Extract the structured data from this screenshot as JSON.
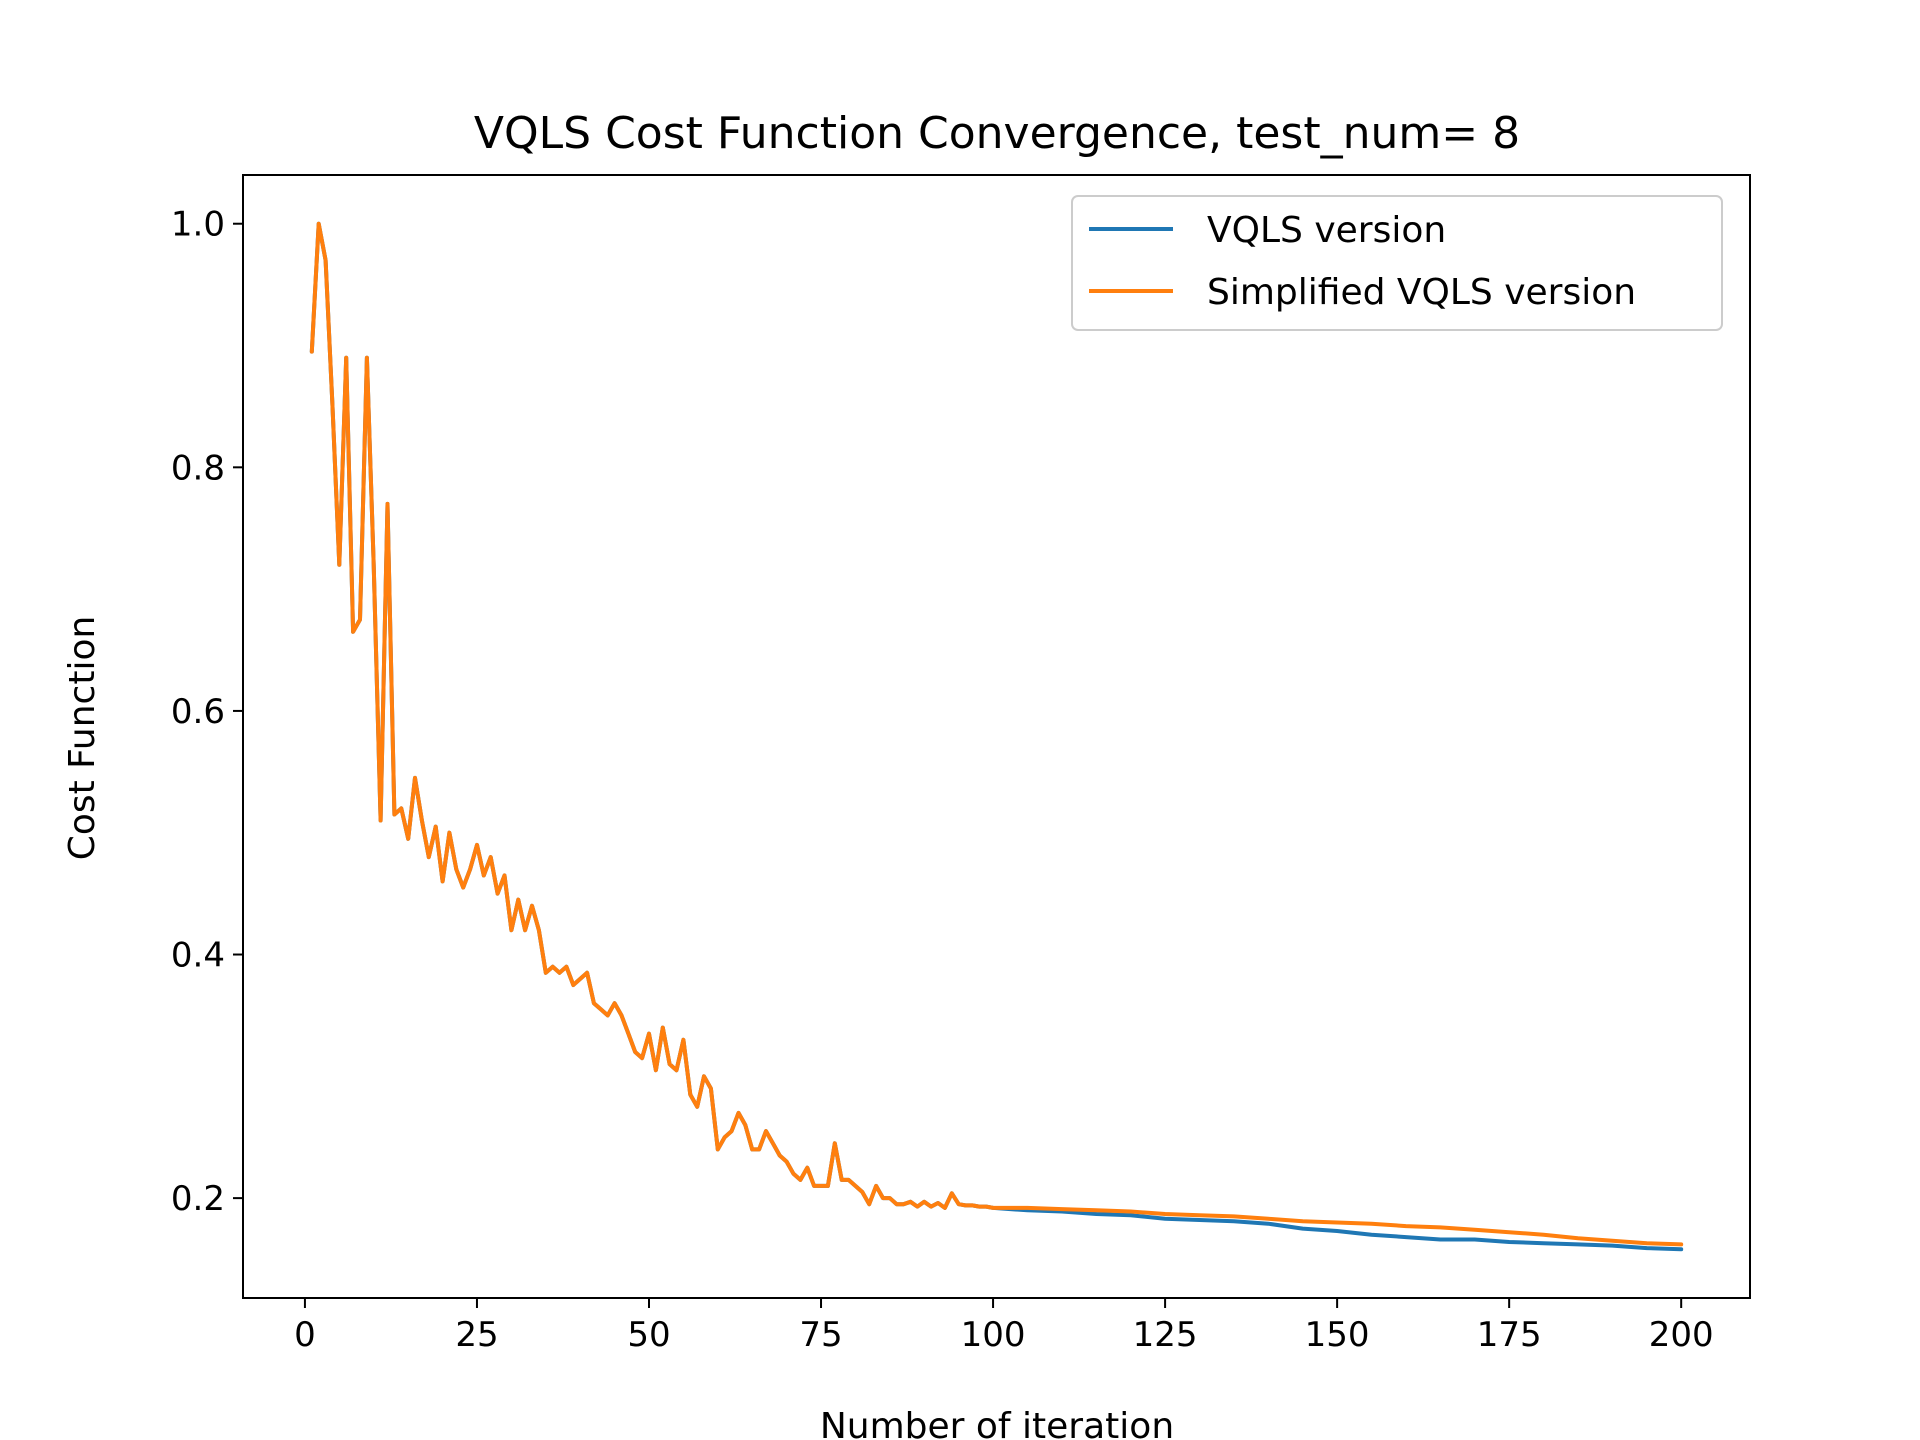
{
  "chart_data": {
    "type": "line",
    "title": "VQLS Cost Function Convergence, test_num= 8",
    "xlabel": "Number of iteration",
    "ylabel": "Cost Function",
    "xlim": [
      -9,
      210
    ],
    "ylim": [
      0.118,
      1.04
    ],
    "xticks": [
      0,
      25,
      50,
      75,
      100,
      125,
      150,
      175,
      200
    ],
    "yticks": [
      0.2,
      0.4,
      0.6,
      0.8,
      1.0
    ],
    "xtick_labels": [
      "0",
      "25",
      "50",
      "75",
      "100",
      "125",
      "150",
      "175",
      "200"
    ],
    "ytick_labels": [
      "0.2",
      "0.4",
      "0.6",
      "0.8",
      "1.0"
    ],
    "grid": false,
    "legend_position": "upper right",
    "series": [
      {
        "name": "VQLS version",
        "color": "#1f77b4",
        "x": [
          1,
          2,
          3,
          4,
          5,
          6,
          7,
          8,
          9,
          10,
          11,
          12,
          13,
          14,
          15,
          16,
          17,
          18,
          19,
          20,
          21,
          22,
          23,
          24,
          25,
          26,
          27,
          28,
          29,
          30,
          31,
          32,
          33,
          34,
          35,
          36,
          37,
          38,
          39,
          40,
          41,
          42,
          43,
          44,
          45,
          46,
          47,
          48,
          49,
          50,
          51,
          52,
          53,
          54,
          55,
          56,
          57,
          58,
          59,
          60,
          61,
          62,
          63,
          64,
          65,
          66,
          67,
          68,
          69,
          70,
          71,
          72,
          73,
          74,
          75,
          76,
          77,
          78,
          79,
          80,
          81,
          82,
          83,
          84,
          85,
          86,
          87,
          88,
          89,
          90,
          91,
          92,
          93,
          94,
          95,
          96,
          97,
          98,
          99,
          100,
          105,
          110,
          115,
          120,
          125,
          130,
          135,
          140,
          145,
          150,
          155,
          160,
          165,
          170,
          175,
          180,
          185,
          190,
          195,
          200
        ],
        "y": [
          0.895,
          1.0,
          0.97,
          0.85,
          0.72,
          0.89,
          0.665,
          0.675,
          0.89,
          0.72,
          0.51,
          0.77,
          0.515,
          0.52,
          0.495,
          0.545,
          0.51,
          0.48,
          0.505,
          0.46,
          0.5,
          0.47,
          0.455,
          0.47,
          0.49,
          0.465,
          0.48,
          0.45,
          0.465,
          0.42,
          0.445,
          0.42,
          0.44,
          0.42,
          0.385,
          0.39,
          0.385,
          0.39,
          0.375,
          0.38,
          0.385,
          0.36,
          0.355,
          0.35,
          0.36,
          0.35,
          0.335,
          0.32,
          0.315,
          0.335,
          0.305,
          0.34,
          0.31,
          0.305,
          0.33,
          0.285,
          0.275,
          0.3,
          0.29,
          0.24,
          0.25,
          0.255,
          0.27,
          0.26,
          0.24,
          0.24,
          0.255,
          0.245,
          0.235,
          0.23,
          0.22,
          0.215,
          0.225,
          0.21,
          0.21,
          0.21,
          0.245,
          0.215,
          0.215,
          0.21,
          0.205,
          0.195,
          0.21,
          0.2,
          0.2,
          0.195,
          0.195,
          0.197,
          0.193,
          0.197,
          0.193,
          0.196,
          0.192,
          0.204,
          0.195,
          0.194,
          0.194,
          0.193,
          0.193,
          0.192,
          0.19,
          0.189,
          0.187,
          0.186,
          0.183,
          0.182,
          0.181,
          0.179,
          0.175,
          0.173,
          0.17,
          0.168,
          0.166,
          0.166,
          0.164,
          0.163,
          0.162,
          0.161,
          0.159,
          0.158
        ]
      },
      {
        "name": "Simplified VQLS version",
        "color": "#ff7f0e",
        "x": [
          1,
          2,
          3,
          4,
          5,
          6,
          7,
          8,
          9,
          10,
          11,
          12,
          13,
          14,
          15,
          16,
          17,
          18,
          19,
          20,
          21,
          22,
          23,
          24,
          25,
          26,
          27,
          28,
          29,
          30,
          31,
          32,
          33,
          34,
          35,
          36,
          37,
          38,
          39,
          40,
          41,
          42,
          43,
          44,
          45,
          46,
          47,
          48,
          49,
          50,
          51,
          52,
          53,
          54,
          55,
          56,
          57,
          58,
          59,
          60,
          61,
          62,
          63,
          64,
          65,
          66,
          67,
          68,
          69,
          70,
          71,
          72,
          73,
          74,
          75,
          76,
          77,
          78,
          79,
          80,
          81,
          82,
          83,
          84,
          85,
          86,
          87,
          88,
          89,
          90,
          91,
          92,
          93,
          94,
          95,
          96,
          97,
          98,
          99,
          100,
          105,
          110,
          115,
          120,
          125,
          130,
          135,
          140,
          145,
          150,
          155,
          160,
          165,
          170,
          175,
          180,
          185,
          190,
          195,
          200
        ],
        "y": [
          0.895,
          1.0,
          0.97,
          0.85,
          0.72,
          0.89,
          0.665,
          0.675,
          0.89,
          0.72,
          0.51,
          0.77,
          0.515,
          0.52,
          0.495,
          0.545,
          0.51,
          0.48,
          0.505,
          0.46,
          0.5,
          0.47,
          0.455,
          0.47,
          0.49,
          0.465,
          0.48,
          0.45,
          0.465,
          0.42,
          0.445,
          0.42,
          0.44,
          0.42,
          0.385,
          0.39,
          0.385,
          0.39,
          0.375,
          0.38,
          0.385,
          0.36,
          0.355,
          0.35,
          0.36,
          0.35,
          0.335,
          0.32,
          0.315,
          0.335,
          0.305,
          0.34,
          0.31,
          0.305,
          0.33,
          0.285,
          0.275,
          0.3,
          0.29,
          0.24,
          0.25,
          0.255,
          0.27,
          0.26,
          0.24,
          0.24,
          0.255,
          0.245,
          0.235,
          0.23,
          0.22,
          0.215,
          0.225,
          0.21,
          0.21,
          0.21,
          0.245,
          0.215,
          0.215,
          0.21,
          0.205,
          0.195,
          0.21,
          0.2,
          0.2,
          0.195,
          0.195,
          0.197,
          0.193,
          0.197,
          0.193,
          0.196,
          0.192,
          0.204,
          0.195,
          0.194,
          0.194,
          0.193,
          0.193,
          0.192,
          0.192,
          0.191,
          0.19,
          0.189,
          0.187,
          0.186,
          0.185,
          0.183,
          0.181,
          0.18,
          0.179,
          0.177,
          0.176,
          0.174,
          0.172,
          0.17,
          0.167,
          0.165,
          0.163,
          0.162
        ]
      }
    ]
  }
}
